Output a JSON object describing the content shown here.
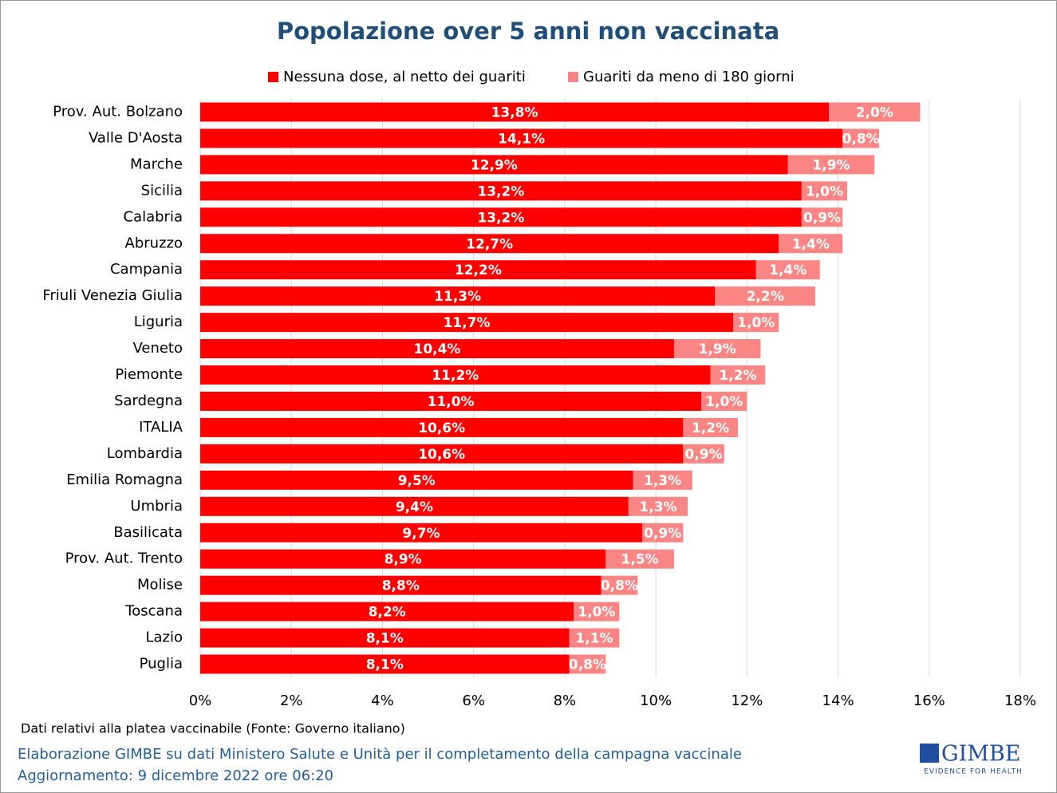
{
  "chart_data": {
    "type": "stacked-bar-horizontal",
    "title": "Popolazione over 5 anni non vaccinata",
    "categories": [
      "Prov. Aut. Bolzano",
      "Valle D'Aosta",
      "Marche",
      "Sicilia",
      "Calabria",
      "Abruzzo",
      "Campania",
      "Friuli Venezia Giulia",
      "Liguria",
      "Veneto",
      "Piemonte",
      "Sardegna",
      "ITALIA",
      "Lombardia",
      "Emilia Romagna",
      "Umbria",
      "Basilicata",
      "Prov. Aut. Trento",
      "Molise",
      "Toscana",
      "Lazio",
      "Puglia"
    ],
    "series": [
      {
        "name": "Nessuna dose, al netto dei guariti",
        "color": "#ff0000",
        "values": [
          13.8,
          14.1,
          12.9,
          13.2,
          13.2,
          12.7,
          12.2,
          11.3,
          11.7,
          10.4,
          11.2,
          11.0,
          10.6,
          10.6,
          9.5,
          9.4,
          9.7,
          8.9,
          8.8,
          8.2,
          8.1,
          8.1
        ],
        "value_labels": [
          "13,8%",
          "14,1%",
          "12,9%",
          "13,2%",
          "13,2%",
          "12,7%",
          "12,2%",
          "11,3%",
          "11,7%",
          "10,4%",
          "11,2%",
          "11,0%",
          "10,6%",
          "10,6%",
          "9,5%",
          "9,4%",
          "9,7%",
          "8,9%",
          "8,8%",
          "8,2%",
          "8,1%",
          "8,1%"
        ]
      },
      {
        "name": "Guariti da meno di 180 giorni",
        "color": "#fa8585",
        "values": [
          2.0,
          0.8,
          1.9,
          1.0,
          0.9,
          1.4,
          1.4,
          2.2,
          1.0,
          1.9,
          1.2,
          1.0,
          1.2,
          0.9,
          1.3,
          1.3,
          0.9,
          1.5,
          0.8,
          1.0,
          1.1,
          0.8
        ],
        "value_labels": [
          "2,0%",
          "0,8%",
          "1,9%",
          "1,0%",
          "0,9%",
          "1,4%",
          "1,4%",
          "2,2%",
          "1,0%",
          "1,9%",
          "1,2%",
          "1,0%",
          "1,2%",
          "0,9%",
          "1,3%",
          "1,3%",
          "0,9%",
          "1,5%",
          "0,8%",
          "1,0%",
          "1,1%",
          "0,8%"
        ]
      }
    ],
    "xlim": [
      0,
      18
    ],
    "xticks": [
      {
        "value": 0,
        "label": "0%"
      },
      {
        "value": 2,
        "label": "2%"
      },
      {
        "value": 4,
        "label": "4%"
      },
      {
        "value": 6,
        "label": "6%"
      },
      {
        "value": 8,
        "label": "8%"
      },
      {
        "value": 10,
        "label": "10%"
      },
      {
        "value": 12,
        "label": "12%"
      },
      {
        "value": 14,
        "label": "14%"
      },
      {
        "value": 16,
        "label": "16%"
      },
      {
        "value": 18,
        "label": "18%"
      }
    ],
    "grid": true,
    "legend": "top",
    "notes": [
      "Dati relativi alla platea vaccinabile (Fonte: Governo italiano)",
      "Elaborazione GIMBE su dati Ministero Salute e Unità per il completamento della campagna vaccinale",
      "Aggiornamento: 9 dicembre 2022 ore 06:20"
    ],
    "logo": {
      "name": "GIMBE",
      "tagline": "EVIDENCE FOR HEALTH"
    }
  }
}
